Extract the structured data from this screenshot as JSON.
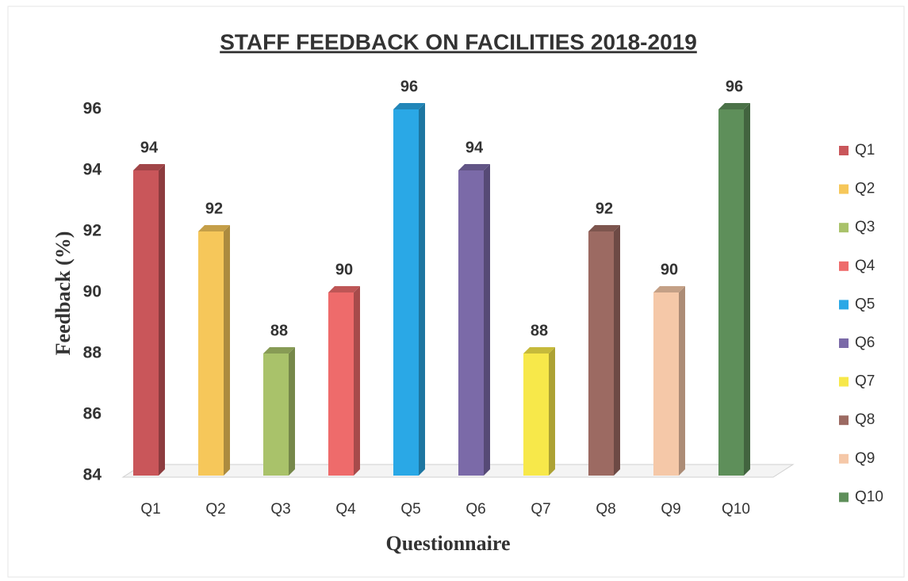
{
  "chart_data": {
    "type": "bar",
    "title": "STAFF FEEDBACK ON FACILITIES  2018-2019",
    "y_label": "Feedback (%)",
    "x_label": "Questionnaire",
    "categories": [
      "Q1",
      "Q2",
      "Q3",
      "Q4",
      "Q5",
      "Q6",
      "Q7",
      "Q8",
      "Q9",
      "Q10"
    ],
    "values": [
      94,
      92,
      88,
      90,
      96,
      94,
      88,
      92,
      90,
      96
    ],
    "colors": [
      "#c9565a",
      "#f6c75a",
      "#a9c26a",
      "#ee6b6b",
      "#2aa8e6",
      "#7b6aa8",
      "#f7e84a",
      "#9c6a62",
      "#f5c8a8",
      "#5e8f5a"
    ],
    "ylim": [
      84,
      96
    ],
    "yticks": [
      84,
      86,
      88,
      90,
      92,
      94,
      96
    ],
    "legend": "right"
  }
}
